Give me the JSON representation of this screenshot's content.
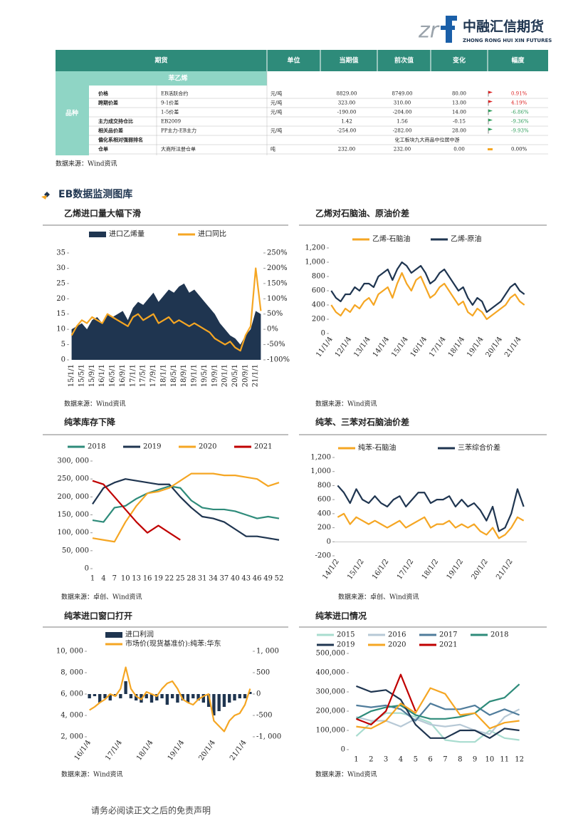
{
  "header": {
    "logo_cn": "中融汇信期货",
    "logo_en": "ZHONG RONG HUI XIN FUTURES"
  },
  "table": {
    "columns": [
      "期货",
      "单位",
      "当期值",
      "前次值",
      "变化",
      "幅度"
    ],
    "subheader": "苯乙烯",
    "group": "品种",
    "rows": [
      {
        "label": "价格",
        "item": "EB活跃合约",
        "unit": "元/吨",
        "current": "8829.00",
        "previous": "8749.00",
        "change": "80.00",
        "pct": "0.91%"
      },
      {
        "label": "跨期价差",
        "item": "9-1价差",
        "unit": "元/吨",
        "current": "323.00",
        "previous": "310.00",
        "change": "13.00",
        "pct": "4.19%"
      },
      {
        "item": "1-5价差",
        "unit": "元/吨",
        "current": "-190.00",
        "previous": "-204.00",
        "change": "14.00",
        "pct": "-6.86%"
      },
      {
        "label": "主力成交持仓比",
        "item": "EB2009",
        "current": "1.42",
        "previous": "1.56",
        "change": "-0.15",
        "pct": "-9.36%"
      },
      {
        "label": "相关品价差",
        "item": "PP主力-EB主力",
        "unit": "元/吨",
        "current": "-254.00",
        "previous": "-282.00",
        "change": "28.00",
        "pct": "-9.93%"
      },
      {
        "label": "偏化系相对强弱排名",
        "note": "化工板块九大商品中位居中游"
      },
      {
        "label": "仓单",
        "item": "大商所注册仓单",
        "unit": "吨",
        "current": "232.00",
        "previous": "232.00",
        "change": "0.00",
        "pct": "0.00%"
      }
    ],
    "source": "数据来源：Wind资讯"
  },
  "section_title": "EB数据监测图库",
  "chart_data": [
    {
      "type": "combo",
      "title": "乙烯进口量大幅下滑",
      "note": "数据来源：Wind资讯",
      "categories": [
        "15/1/1",
        null,
        "15/5/1",
        null,
        "15/9/1",
        null,
        "16/1/1",
        null,
        "16/5/1",
        null,
        "16/9/1",
        null,
        "17/1/1",
        null,
        "17/5/1",
        null,
        "17/9/1",
        null,
        "18/1/1",
        null,
        "18/5/1",
        null,
        "18/9/1",
        null,
        "19/1/1",
        null,
        "19/5/1",
        null,
        "19/9/1",
        null,
        "20/1/1",
        null,
        "20/5/1",
        null,
        "20/9/1",
        null,
        "21/1/1",
        null
      ],
      "series": [
        {
          "name": "进口乙烯量",
          "color": "#1f3550",
          "kind": "area",
          "values": [
            10,
            11,
            12,
            10,
            13,
            14,
            12,
            15,
            14,
            15,
            16,
            13,
            17,
            19,
            18,
            20,
            22,
            19,
            21,
            23,
            22,
            24,
            25,
            22,
            23,
            21,
            19,
            17,
            15,
            12,
            10,
            8,
            7,
            5,
            8,
            10,
            16,
            15
          ]
        },
        {
          "name": "进口同比",
          "color": "#f5a623",
          "kind": "line",
          "axis": "y2",
          "values": [
            -20,
            10,
            30,
            20,
            40,
            30,
            20,
            50,
            40,
            30,
            20,
            10,
            40,
            50,
            30,
            40,
            50,
            20,
            30,
            40,
            20,
            30,
            20,
            10,
            20,
            10,
            0,
            -10,
            -30,
            -40,
            -50,
            -40,
            -60,
            -70,
            -20,
            10,
            200,
            60
          ]
        }
      ],
      "ylim": [
        0,
        35
      ],
      "yticks": [
        0,
        5,
        10,
        15,
        20,
        25,
        30,
        35
      ],
      "y2lim": [
        -100,
        250
      ],
      "y2ticks": [
        {
          "value": -100,
          "label": "-100%"
        },
        {
          "value": -50,
          "label": "-50%"
        },
        {
          "value": 0,
          "label": "0%"
        },
        {
          "value": 50,
          "label": "50%"
        },
        {
          "value": 100,
          "label": "100%"
        },
        {
          "value": 150,
          "label": "150%"
        },
        {
          "value": 200,
          "label": "200%"
        },
        {
          "value": 250,
          "label": "250%"
        }
      ]
    },
    {
      "type": "line",
      "title": "乙烯对石脑油、原油价差",
      "note": "数据来源：Wind资讯",
      "categories": [
        "11/1/4",
        null,
        null,
        null,
        "12/1/4",
        null,
        null,
        null,
        "13/1/4",
        null,
        null,
        null,
        "14/1/4",
        null,
        null,
        null,
        "15/1/4",
        null,
        null,
        null,
        "16/1/4",
        null,
        null,
        null,
        "17/1/4",
        null,
        null,
        null,
        "18/1/4",
        null,
        null,
        null,
        "19/1/4",
        null,
        null,
        null,
        "20/1/4",
        null,
        null,
        null,
        "21/1/4",
        null
      ],
      "series": [
        {
          "name": "乙烯-石脑油",
          "color": "#f5a623",
          "kind": "line",
          "values": [
            400,
            300,
            250,
            350,
            300,
            400,
            350,
            450,
            500,
            400,
            550,
            600,
            650,
            500,
            700,
            850,
            700,
            600,
            750,
            800,
            650,
            500,
            550,
            650,
            700,
            600,
            500,
            400,
            450,
            300,
            250,
            350,
            300,
            200,
            250,
            300,
            350,
            400,
            500,
            550,
            450,
            400
          ]
        },
        {
          "name": "乙烯-原油",
          "color": "#1f3550",
          "kind": "line",
          "values": [
            600,
            500,
            450,
            550,
            550,
            650,
            600,
            700,
            700,
            650,
            800,
            850,
            900,
            750,
            900,
            1000,
            950,
            850,
            900,
            950,
            850,
            700,
            750,
            850,
            900,
            800,
            700,
            600,
            650,
            500,
            400,
            500,
            450,
            300,
            350,
            400,
            450,
            550,
            650,
            700,
            600,
            550
          ]
        }
      ],
      "ylim": [
        0,
        1200
      ],
      "yticks": [
        0,
        200,
        400,
        600,
        800,
        {
          "value": 1000,
          "label": "1,000"
        },
        {
          "value": 1200,
          "label": "1,200"
        }
      ]
    },
    {
      "type": "line",
      "title": "纯苯库存下降",
      "note": "数据来源：卓创、Wind资讯",
      "x": [
        1,
        4,
        7,
        10,
        13,
        16,
        19,
        22,
        25,
        28,
        31,
        34,
        37,
        40,
        43,
        46,
        49,
        52
      ],
      "xlim": [
        1,
        52
      ],
      "series": [
        {
          "name": "2018",
          "color": "#2e8b7a",
          "kind": "line",
          "values": [
            135000,
            130000,
            170000,
            175000,
            195000,
            210000,
            220000,
            230000,
            225000,
            190000,
            170000,
            165000,
            165000,
            160000,
            150000,
            140000,
            145000,
            140000
          ]
        },
        {
          "name": "2019",
          "color": "#1f3550",
          "kind": "line",
          "values": [
            180000,
            225000,
            240000,
            250000,
            245000,
            240000,
            235000,
            235000,
            200000,
            170000,
            145000,
            140000,
            130000,
            110000,
            90000,
            90000,
            85000,
            80000
          ]
        },
        {
          "name": "2020",
          "color": "#f5a623",
          "kind": "line",
          "values": [
            85000,
            80000,
            75000,
            130000,
            175000,
            210000,
            215000,
            225000,
            245000,
            265000,
            265000,
            265000,
            260000,
            260000,
            255000,
            250000,
            230000,
            240000
          ]
        },
        {
          "name": "2021",
          "color": "#c00000",
          "kind": "line",
          "values": [
            245000,
            235000,
            200000,
            165000,
            130000,
            100000,
            120000,
            100000,
            80000,
            null,
            null,
            null,
            null,
            null,
            null,
            null,
            null,
            null
          ]
        }
      ],
      "ylim": [
        0,
        300000
      ],
      "yticks": [
        0,
        {
          "value": 50000,
          "label": "50, 000"
        },
        {
          "value": 100000,
          "label": "100, 000"
        },
        {
          "value": 150000,
          "label": "150, 000"
        },
        {
          "value": 200000,
          "label": "200, 000"
        },
        {
          "value": 250000,
          "label": "250, 000"
        },
        {
          "value": 300000,
          "label": "300, 000"
        }
      ]
    },
    {
      "type": "line",
      "title": "纯苯、三苯对石脑油价差",
      "note": "数据来源：卓创、Wind资讯",
      "categories": [
        "14/1/2",
        null,
        null,
        null,
        "15/1/2",
        null,
        null,
        null,
        "16/1/2",
        null,
        null,
        null,
        "17/1/2",
        null,
        null,
        null,
        "18/1/2",
        null,
        null,
        null,
        "19/1/2",
        null,
        null,
        null,
        "20/1/2",
        null,
        null,
        null,
        "21/1/2",
        null,
        null
      ],
      "series": [
        {
          "name": "纯苯-石脑油",
          "color": "#f5a623",
          "kind": "line",
          "values": [
            350,
            400,
            250,
            350,
            300,
            250,
            300,
            250,
            200,
            250,
            300,
            200,
            250,
            300,
            350,
            200,
            250,
            250,
            300,
            200,
            250,
            200,
            250,
            150,
            100,
            200,
            50,
            100,
            200,
            350,
            300
          ]
        },
        {
          "name": "三苯综合价差",
          "color": "#1f3550",
          "kind": "line",
          "values": [
            800,
            700,
            550,
            750,
            600,
            550,
            650,
            550,
            500,
            600,
            650,
            500,
            600,
            700,
            700,
            550,
            600,
            600,
            650,
            500,
            600,
            500,
            550,
            450,
            300,
            500,
            150,
            200,
            400,
            750,
            500
          ]
        }
      ],
      "ylim": [
        -200,
        1200
      ],
      "yticks": [
        -200,
        0,
        200,
        400,
        600,
        800,
        {
          "value": 1000,
          "label": "1,000"
        },
        {
          "value": 1200,
          "label": "1,200"
        }
      ]
    },
    {
      "type": "combo",
      "title": "纯苯进口窗口打开",
      "note": "数据来源：Wind资讯",
      "categories": [
        "16/1/4",
        null,
        null,
        null,
        null,
        null,
        "17/1/4",
        null,
        null,
        null,
        null,
        null,
        "18/1/4",
        null,
        null,
        null,
        null,
        null,
        "19/1/4",
        null,
        null,
        null,
        null,
        null,
        "20/1/4",
        null,
        null,
        null,
        null,
        null,
        "21/1/4",
        null
      ],
      "series": [
        {
          "name": "进口利润",
          "color": "#1f3550",
          "kind": "bar",
          "axis": "y2",
          "values": [
            -100,
            -50,
            -200,
            -100,
            -150,
            -50,
            -100,
            300,
            -100,
            -150,
            -200,
            -100,
            -200,
            -150,
            -100,
            -250,
            -100,
            -200,
            -150,
            -200,
            -100,
            -150,
            -200,
            -300,
            -500,
            -400,
            -300,
            -200,
            -150,
            -100,
            -100,
            50
          ]
        },
        {
          "name": "市场价(现货基准价):纯苯:华东",
          "color": "#f5a623",
          "kind": "line",
          "values": [
            4500,
            4800,
            5200,
            5500,
            6000,
            5800,
            6500,
            8500,
            6500,
            5800,
            5500,
            6200,
            6000,
            5800,
            6500,
            7000,
            7200,
            6500,
            5500,
            5200,
            5000,
            5500,
            5800,
            6000,
            3500,
            3000,
            2500,
            3500,
            4000,
            4200,
            5000,
            6500
          ]
        }
      ],
      "ylim": [
        2000,
        10000
      ],
      "yticks": [
        {
          "value": 2000,
          "label": "2, 000"
        },
        {
          "value": 4000,
          "label": "4, 000"
        },
        {
          "value": 6000,
          "label": "6, 000"
        },
        {
          "value": 8000,
          "label": "8, 000"
        },
        {
          "value": 10000,
          "label": "10, 000"
        }
      ],
      "y2lim": [
        -1000,
        1000
      ],
      "y2ticks": [
        {
          "value": -1000,
          "label": "-1, 000"
        },
        -500,
        0,
        500,
        {
          "value": 1000,
          "label": "1, 000"
        }
      ]
    },
    {
      "type": "line",
      "title": "纯苯进口情况",
      "note": "数据来源：Wind资讯",
      "categories": [
        1,
        2,
        3,
        4,
        5,
        6,
        7,
        8,
        9,
        10,
        11,
        12
      ],
      "series": [
        {
          "name": "2015",
          "color": "#a8dccf",
          "kind": "line",
          "values": [
            70000,
            140000,
            190000,
            190000,
            170000,
            140000,
            50000,
            40000,
            40000,
            100000,
            60000,
            50000
          ]
        },
        {
          "name": "2016",
          "color": "#b7c9d6",
          "kind": "line",
          "values": [
            170000,
            150000,
            150000,
            120000,
            160000,
            130000,
            120000,
            130000,
            100000,
            80000,
            170000,
            210000
          ]
        },
        {
          "name": "2017",
          "color": "#4f7c9b",
          "kind": "line",
          "values": [
            230000,
            220000,
            230000,
            210000,
            150000,
            240000,
            210000,
            210000,
            230000,
            180000,
            210000,
            180000
          ]
        },
        {
          "name": "2018",
          "color": "#2e8b7a",
          "kind": "line",
          "values": [
            160000,
            200000,
            220000,
            230000,
            180000,
            160000,
            160000,
            170000,
            190000,
            250000,
            270000,
            340000
          ]
        },
        {
          "name": "2019",
          "color": "#1f3550",
          "kind": "line",
          "values": [
            330000,
            300000,
            310000,
            260000,
            130000,
            60000,
            60000,
            100000,
            100000,
            60000,
            110000,
            100000
          ]
        },
        {
          "name": "2020",
          "color": "#f5a623",
          "kind": "line",
          "values": [
            120000,
            110000,
            150000,
            240000,
            190000,
            320000,
            290000,
            180000,
            190000,
            110000,
            140000,
            150000
          ]
        },
        {
          "name": "2021",
          "color": "#c00000",
          "kind": "line",
          "values": [
            160000,
            130000,
            200000,
            390000,
            200000,
            null,
            null,
            null,
            null,
            null,
            null,
            null
          ]
        }
      ],
      "ylim": [
        0,
        500000
      ],
      "yticks": [
        0,
        {
          "value": 100000,
          "label": "100,000"
        },
        {
          "value": 200000,
          "label": "200,000"
        },
        {
          "value": 300000,
          "label": "300,000"
        },
        {
          "value": 400000,
          "label": "400,000"
        },
        {
          "value": 500000,
          "label": "500,000"
        }
      ]
    }
  ],
  "footer": "请务必阅读正文之后的免责声明"
}
